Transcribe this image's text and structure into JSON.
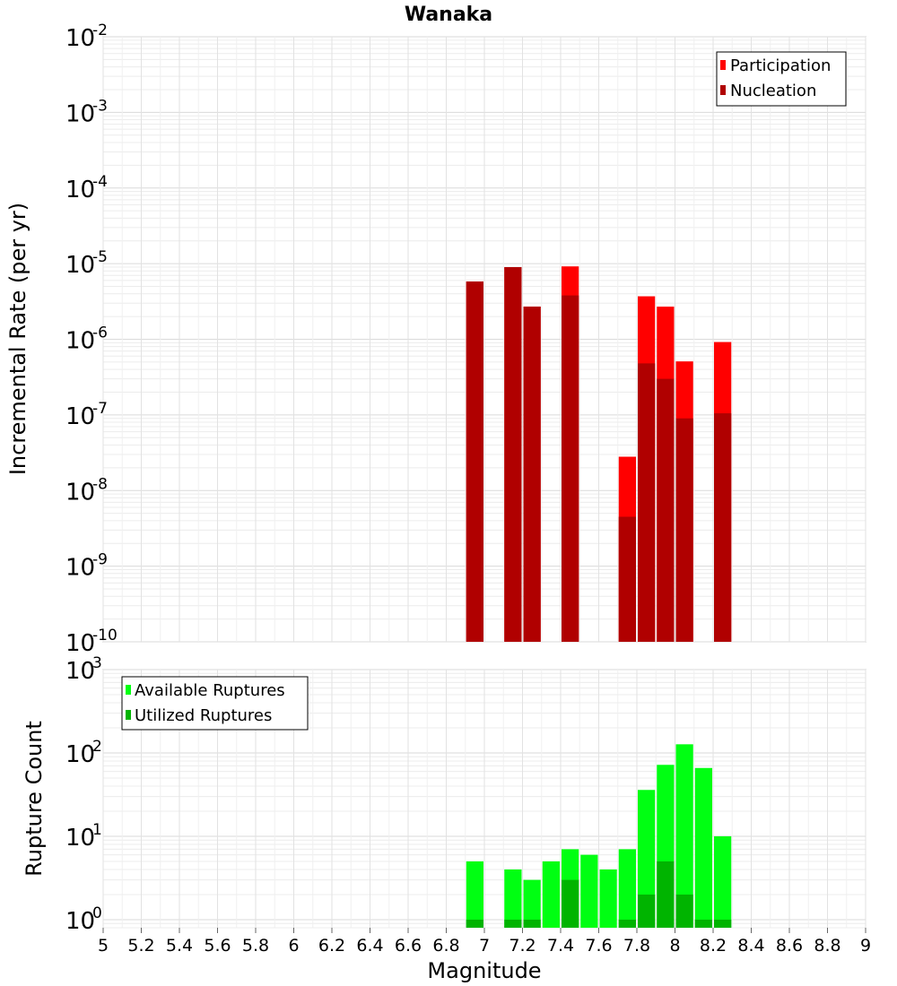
{
  "title": "Wanaka",
  "xlabel": "Magnitude",
  "x_ticks": [
    "5",
    "5.2",
    "5.4",
    "5.6",
    "5.8",
    "6",
    "6.2",
    "6.4",
    "6.6",
    "6.8",
    "7",
    "7.2",
    "7.4",
    "7.6",
    "7.8",
    "8",
    "8.2",
    "8.4",
    "8.6",
    "8.8",
    "9"
  ],
  "top_panel": {
    "ylabel": "Incremental Rate (per yr)",
    "y_ticks": [
      {
        "base": "10",
        "exp": "-10"
      },
      {
        "base": "10",
        "exp": "-9"
      },
      {
        "base": "10",
        "exp": "-8"
      },
      {
        "base": "10",
        "exp": "-7"
      },
      {
        "base": "10",
        "exp": "-6"
      },
      {
        "base": "10",
        "exp": "-5"
      },
      {
        "base": "10",
        "exp": "-4"
      },
      {
        "base": "10",
        "exp": "-3"
      },
      {
        "base": "10",
        "exp": "-2"
      }
    ],
    "legend": [
      "Participation",
      "Nucleation"
    ]
  },
  "bottom_panel": {
    "ylabel": "Rupture Count",
    "y_ticks": [
      {
        "base": "10",
        "exp": "0"
      },
      {
        "base": "10",
        "exp": "1"
      },
      {
        "base": "10",
        "exp": "2"
      },
      {
        "base": "10",
        "exp": "3"
      }
    ],
    "legend": [
      "Available Ruptures",
      "Utilized Ruptures"
    ]
  },
  "colors": {
    "participation": "#ff0000",
    "nucleation": "#b00000",
    "available": "#00ff12",
    "utilized": "#00b400"
  },
  "chart_data": [
    {
      "type": "bar",
      "title": "Wanaka",
      "xlabel": "Magnitude",
      "ylabel": "Incremental Rate (per yr)",
      "xlim": [
        5,
        9
      ],
      "ylim": [
        1e-10,
        0.01
      ],
      "yscale": "log",
      "grid": true,
      "legend_position": "top-right",
      "bin_width": 0.1,
      "x": [
        6.95,
        7.15,
        7.25,
        7.45,
        7.75,
        7.85,
        7.95,
        8.05,
        8.25
      ],
      "series": [
        {
          "name": "Participation",
          "values": [
            5.8e-06,
            9e-06,
            2.7e-06,
            9.2e-06,
            2.8e-08,
            3.7e-06,
            2.7e-06,
            5.1e-07,
            9.2e-07
          ]
        },
        {
          "name": "Nucleation",
          "values": [
            5.8e-06,
            9e-06,
            2.7e-06,
            3.8e-06,
            4.5e-09,
            4.8e-07,
            3e-07,
            9e-08,
            1.05e-07
          ]
        }
      ]
    },
    {
      "type": "bar",
      "xlabel": "Magnitude",
      "ylabel": "Rupture Count",
      "xlim": [
        5,
        9
      ],
      "ylim": [
        0.8,
        1000
      ],
      "yscale": "log",
      "grid": true,
      "legend_position": "top-left",
      "bin_width": 0.1,
      "x": [
        6.95,
        7.15,
        7.25,
        7.35,
        7.45,
        7.55,
        7.65,
        7.75,
        7.85,
        7.95,
        8.05,
        8.15,
        8.25
      ],
      "series": [
        {
          "name": "Available Ruptures",
          "values": [
            5,
            4,
            3,
            5,
            7,
            6,
            4,
            7,
            36,
            72,
            127,
            66,
            10
          ]
        },
        {
          "name": "Utilized Ruptures",
          "values": [
            1,
            1,
            1,
            0,
            3,
            0,
            0,
            1,
            2,
            5,
            2,
            1,
            1
          ]
        }
      ]
    }
  ]
}
